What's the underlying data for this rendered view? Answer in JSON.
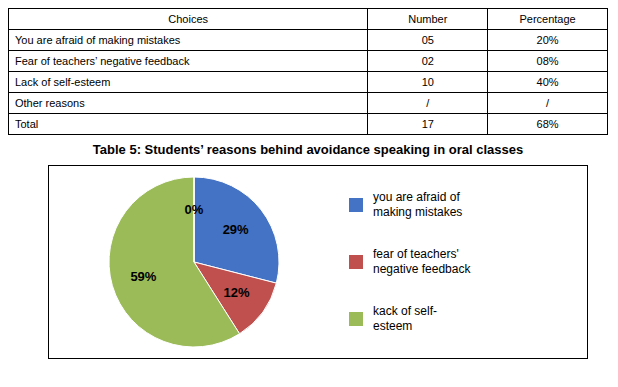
{
  "chart_data": {
    "type": "pie",
    "title": "Table 5: Students’ reasons behind avoidance speaking in oral classes",
    "categories": [
      "you are afraid of\nmaking mistakes",
      "fear of teachers'\nnegative feedback",
      "kack of self-\nesteem",
      null
    ],
    "values": [
      29,
      12,
      59,
      0.001
    ],
    "value_labels": [
      "29%",
      "12%",
      "59%",
      "0%"
    ],
    "colors": [
      "#4472C4",
      "#C0504D",
      "#9BBB59",
      "#FFFFFF"
    ],
    "data_labels": true,
    "legend": "right",
    "table": {
      "headers": [
        "Choices",
        "Number",
        "Percentage"
      ],
      "rows": [
        [
          "You are afraid of making mistakes",
          "05",
          "20%"
        ],
        [
          "Fear of teachers’ negative feedback",
          "02",
          "08%"
        ],
        [
          "Lack of self-esteem",
          "10",
          "40%"
        ],
        [
          "Other reasons",
          "/",
          "/"
        ],
        [
          "Total",
          "17",
          "68%"
        ]
      ]
    }
  }
}
